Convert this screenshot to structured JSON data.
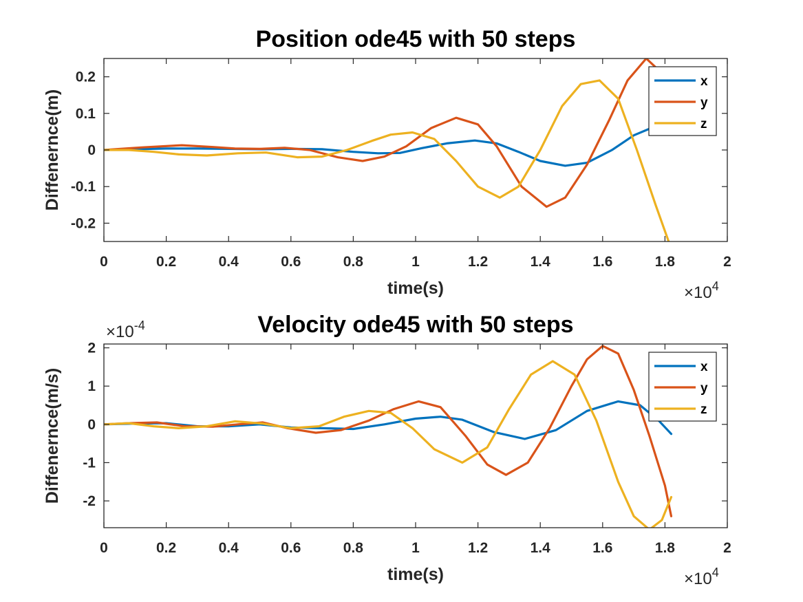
{
  "colors": {
    "x": "#0072BD",
    "y": "#D95319",
    "z": "#EDB120"
  },
  "chart_data": [
    {
      "type": "line",
      "title": "Position ode45 with 50 steps",
      "xlabel": "time(s)",
      "ylabel": "Diffenernce(m)",
      "xlim": [
        0,
        20000
      ],
      "ylim": [
        -0.25,
        0.25
      ],
      "x_multiplier": "×10",
      "x_multiplier_exp": "4",
      "y_multiplier": "",
      "y_multiplier_exp": "",
      "xticks": [
        0,
        2000,
        4000,
        6000,
        8000,
        10000,
        12000,
        14000,
        16000,
        18000,
        20000
      ],
      "xtick_labels": [
        "0",
        "0.2",
        "0.4",
        "0.6",
        "0.8",
        "1",
        "1.2",
        "1.4",
        "1.6",
        "1.8",
        "2"
      ],
      "yticks": [
        -0.2,
        -0.1,
        0,
        0.1,
        0.2
      ],
      "ytick_labels": [
        "-0.2",
        "-0.1",
        "0",
        "0.1",
        "0.2"
      ],
      "grid": false,
      "legend_position": "top-right",
      "series": [
        {
          "name": "x",
          "x": [
            0,
            1000,
            2000,
            3000,
            4000,
            5000,
            6000,
            7000,
            8000,
            8800,
            9500,
            10200,
            11000,
            11900,
            12600,
            13300,
            14000,
            14800,
            15500,
            16300,
            17000,
            17700,
            18200
          ],
          "y": [
            0,
            0.002,
            0.004,
            0.004,
            0.003,
            0.002,
            0.003,
            0.002,
            -0.005,
            -0.009,
            -0.008,
            0.005,
            0.018,
            0.026,
            0.018,
            -0.005,
            -0.03,
            -0.043,
            -0.035,
            0.0,
            0.04,
            0.065,
            0.08
          ]
        },
        {
          "name": "y",
          "x": [
            0,
            1200,
            2500,
            3500,
            4200,
            5000,
            5800,
            6600,
            7500,
            8300,
            9000,
            9700,
            10500,
            11300,
            12000,
            12600,
            13400,
            14200,
            14800,
            15500,
            16200,
            16800,
            17400,
            17900,
            18300
          ],
          "y": [
            0,
            0.007,
            0.013,
            0.008,
            0.004,
            0.003,
            0.006,
            0.0,
            -0.02,
            -0.03,
            -0.018,
            0.01,
            0.06,
            0.088,
            0.07,
            0.01,
            -0.1,
            -0.155,
            -0.13,
            -0.04,
            0.08,
            0.19,
            0.25,
            0.21,
            0.1
          ]
        },
        {
          "name": "z",
          "x": [
            0,
            800,
            1600,
            2400,
            3300,
            4300,
            5200,
            6200,
            7000,
            7800,
            8600,
            9200,
            9900,
            10600,
            11300,
            12000,
            12700,
            13300,
            14000,
            14700,
            15300,
            15900,
            16500,
            17100,
            17700,
            18200
          ],
          "y": [
            0,
            0.0,
            -0.005,
            -0.012,
            -0.015,
            -0.009,
            -0.007,
            -0.02,
            -0.018,
            0.0,
            0.025,
            0.042,
            0.048,
            0.03,
            -0.03,
            -0.1,
            -0.13,
            -0.1,
            0.0,
            0.12,
            0.18,
            0.19,
            0.14,
            0.0,
            -0.15,
            -0.27
          ]
        }
      ]
    },
    {
      "type": "line",
      "title": "Velocity ode45 with 50 steps",
      "xlabel": "time(s)",
      "ylabel": "Diffenernce(m/s)",
      "xlim": [
        0,
        20000
      ],
      "ylim": [
        -2.7,
        2.1
      ],
      "x_multiplier": "×10",
      "x_multiplier_exp": "4",
      "y_multiplier": "×10",
      "y_multiplier_exp": "-4",
      "xticks": [
        0,
        2000,
        4000,
        6000,
        8000,
        10000,
        12000,
        14000,
        16000,
        18000,
        20000
      ],
      "xtick_labels": [
        "0",
        "0.2",
        "0.4",
        "0.6",
        "0.8",
        "1",
        "1.2",
        "1.4",
        "1.6",
        "1.8",
        "2"
      ],
      "yticks": [
        -2,
        -1,
        0,
        1,
        2
      ],
      "ytick_labels": [
        "-2",
        "-1",
        "0",
        "1",
        "2"
      ],
      "grid": false,
      "legend_position": "top-right",
      "series": [
        {
          "name": "x",
          "x": [
            0,
            1000,
            2000,
            3000,
            4000,
            5000,
            6000,
            7000,
            8000,
            9000,
            10000,
            10800,
            11500,
            12500,
            13500,
            14500,
            15500,
            16500,
            17200,
            17800,
            18200
          ],
          "y": [
            0,
            0.02,
            0.03,
            -0.05,
            -0.05,
            0.0,
            -0.08,
            -0.1,
            -0.12,
            0.0,
            0.15,
            0.2,
            0.12,
            -0.2,
            -0.38,
            -0.15,
            0.35,
            0.6,
            0.5,
            0.1,
            -0.25
          ]
        },
        {
          "name": "y",
          "x": [
            0,
            800,
            1700,
            2600,
            3500,
            4300,
            5100,
            5900,
            6800,
            7600,
            8500,
            9300,
            10100,
            10800,
            11600,
            12300,
            12900,
            13600,
            14300,
            15000,
            15500,
            16000,
            16500,
            17000,
            17500,
            18000,
            18200
          ],
          "y": [
            0,
            0.03,
            0.05,
            -0.05,
            -0.06,
            0.0,
            0.05,
            -0.1,
            -0.22,
            -0.15,
            0.1,
            0.4,
            0.6,
            0.45,
            -0.3,
            -1.05,
            -1.32,
            -1.0,
            -0.1,
            1.0,
            1.7,
            2.05,
            1.85,
            0.9,
            -0.3,
            -1.6,
            -2.4
          ]
        },
        {
          "name": "z",
          "x": [
            0,
            800,
            1600,
            2400,
            3300,
            4200,
            5100,
            6000,
            6900,
            7700,
            8500,
            9200,
            9900,
            10600,
            11500,
            12300,
            13000,
            13700,
            14400,
            15100,
            15800,
            16500,
            17000,
            17500,
            17900,
            18200
          ],
          "y": [
            0,
            0.03,
            -0.05,
            -0.1,
            -0.05,
            0.08,
            0.02,
            -0.1,
            -0.05,
            0.2,
            0.35,
            0.3,
            -0.1,
            -0.65,
            -1.0,
            -0.6,
            0.4,
            1.3,
            1.65,
            1.3,
            0.1,
            -1.5,
            -2.4,
            -2.75,
            -2.5,
            -1.9
          ]
        }
      ]
    }
  ]
}
